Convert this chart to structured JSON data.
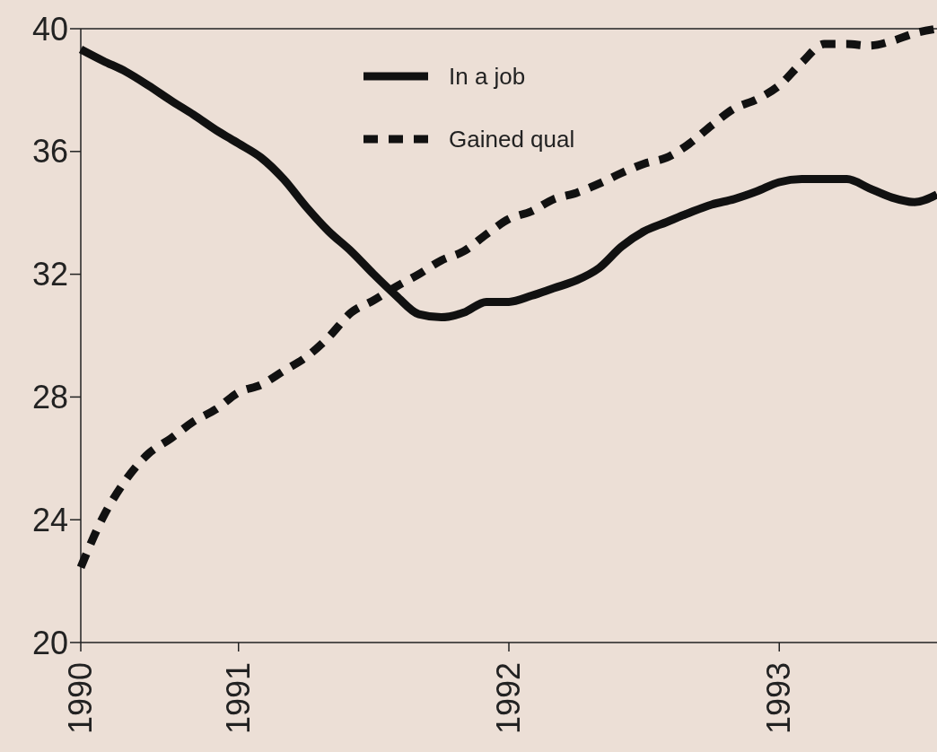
{
  "chart_data": {
    "type": "line",
    "categories": [
      "1990",
      null,
      null,
      null,
      null,
      null,
      null,
      "1991",
      null,
      null,
      null,
      null,
      null,
      null,
      null,
      null,
      null,
      null,
      null,
      "1992",
      null,
      null,
      null,
      null,
      null,
      null,
      null,
      null,
      null,
      null,
      null,
      "1993",
      null,
      null,
      null,
      null,
      null,
      null,
      null
    ],
    "ylim": [
      20,
      40
    ],
    "yticks": [
      20,
      24,
      28,
      32,
      36,
      40
    ],
    "grid": false,
    "legend": "top",
    "marker": "none",
    "series": [
      {
        "name": "In a job",
        "color": "#111111",
        "line_style": "solid",
        "values": [
          39.33,
          38.95,
          38.6,
          38.15,
          37.66,
          37.2,
          36.7,
          36.26,
          35.8,
          35.1,
          34.2,
          33.4,
          32.75,
          32.0,
          31.3,
          30.7,
          30.6,
          30.75,
          31.1,
          31.1,
          31.3,
          31.55,
          31.8,
          32.2,
          32.9,
          33.4,
          33.7,
          34.0,
          34.27,
          34.45,
          34.7,
          35.0,
          35.1,
          35.1,
          35.1,
          34.8,
          34.5,
          34.35,
          34.6
        ]
      },
      {
        "name": "Gained qual",
        "color": "#111111",
        "line_style": "dashed",
        "values": [
          22.45,
          24.1,
          25.3,
          26.15,
          26.65,
          27.2,
          27.6,
          28.15,
          28.4,
          28.85,
          29.3,
          29.95,
          30.75,
          31.15,
          31.6,
          32.0,
          32.45,
          32.75,
          33.3,
          33.8,
          34.05,
          34.45,
          34.65,
          34.95,
          35.3,
          35.6,
          35.8,
          36.25,
          36.85,
          37.4,
          37.7,
          38.15,
          38.9,
          39.5,
          39.5,
          39.45,
          39.6,
          39.85,
          40.0
        ]
      }
    ]
  }
}
